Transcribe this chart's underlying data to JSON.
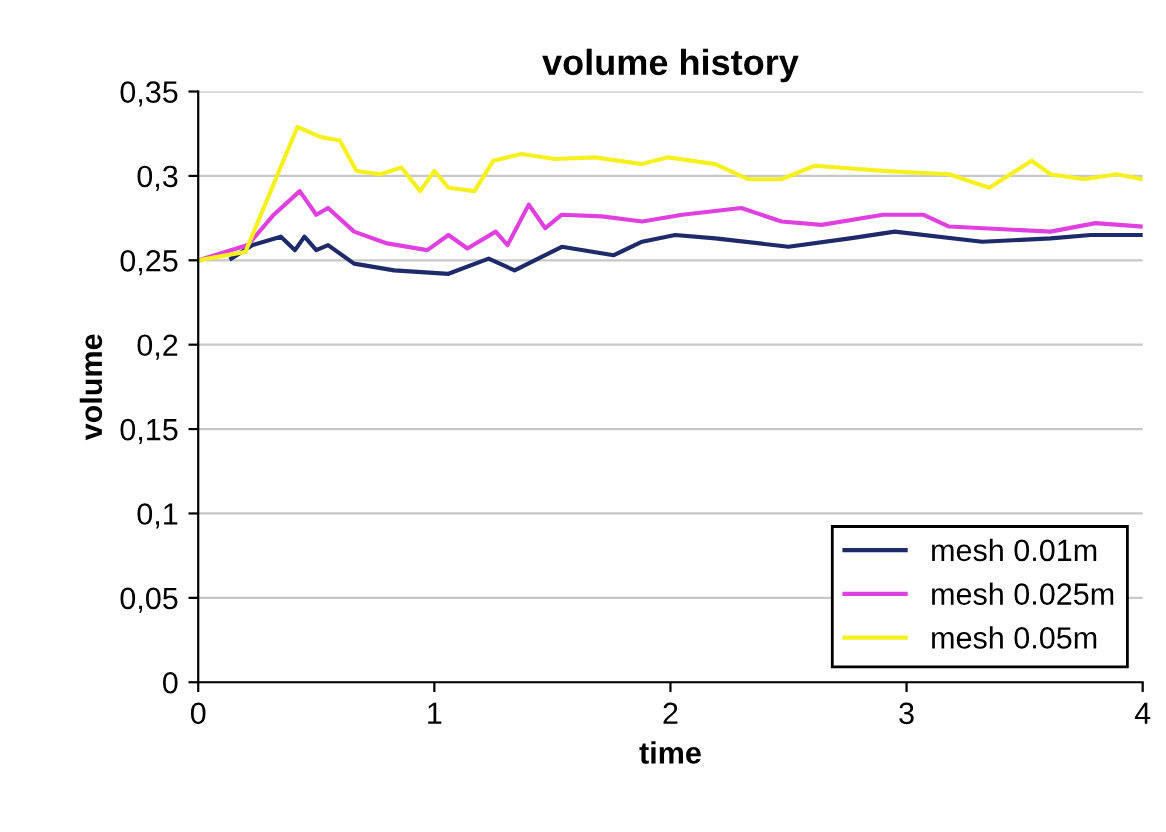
{
  "chart_data": {
    "type": "line",
    "title": "volume history",
    "xlabel": "time",
    "ylabel": "volume",
    "xlim": [
      0,
      4
    ],
    "xticks": [
      0,
      1,
      2,
      3,
      4
    ],
    "ylim": [
      0,
      0.35
    ],
    "yticks": [
      {
        "value": 0,
        "label": "0"
      },
      {
        "value": 0.05,
        "label": "0,05"
      },
      {
        "value": 0.1,
        "label": "0,1"
      },
      {
        "value": 0.15,
        "label": "0,15"
      },
      {
        "value": 0.2,
        "label": "0,2"
      },
      {
        "value": 0.25,
        "label": "0,25"
      },
      {
        "value": 0.3,
        "label": "0,3"
      },
      {
        "value": 0.35,
        "label": "0,35"
      }
    ],
    "grid": "y",
    "legend": "bottom right",
    "marker": "none",
    "line_style": "solid",
    "series": [
      {
        "name": "mesh 0.01m",
        "color": "#1f2a6b",
        "x": [
          0.14,
          0.23,
          0.35,
          0.41,
          0.45,
          0.5,
          0.55,
          0.66,
          0.83,
          1.06,
          1.23,
          1.34,
          1.54,
          1.76,
          1.88,
          2.02,
          2.19,
          2.5,
          2.76,
          2.95,
          3.32,
          3.61,
          3.78,
          4.0
        ],
        "values": [
          0.251,
          0.259,
          0.264,
          0.256,
          0.264,
          0.256,
          0.259,
          0.248,
          0.244,
          0.242,
          0.251,
          0.244,
          0.258,
          0.253,
          0.261,
          0.265,
          0.263,
          0.258,
          0.263,
          0.267,
          0.261,
          0.263,
          0.265,
          0.265
        ]
      },
      {
        "name": "mesh 0.025m",
        "color": "#e040e0",
        "x": [
          0,
          0.21,
          0.32,
          0.43,
          0.5,
          0.55,
          0.66,
          0.8,
          0.97,
          1.06,
          1.14,
          1.26,
          1.31,
          1.4,
          1.47,
          1.54,
          1.71,
          1.88,
          2.05,
          2.3,
          2.47,
          2.64,
          2.9,
          3.07,
          3.18,
          3.61,
          3.8,
          4.0
        ],
        "values": [
          0.25,
          0.259,
          0.277,
          0.291,
          0.277,
          0.281,
          0.267,
          0.26,
          0.256,
          0.265,
          0.257,
          0.267,
          0.259,
          0.283,
          0.269,
          0.277,
          0.276,
          0.273,
          0.277,
          0.281,
          0.273,
          0.271,
          0.277,
          0.277,
          0.27,
          0.267,
          0.272,
          0.27
        ]
      },
      {
        "name": "mesh 0.05m",
        "color": "#f5f020",
        "x": [
          0,
          0.2,
          0.42,
          0.52,
          0.6,
          0.67,
          0.77,
          0.86,
          0.94,
          1.0,
          1.06,
          1.17,
          1.25,
          1.37,
          1.51,
          1.68,
          1.88,
          1.99,
          2.19,
          2.33,
          2.47,
          2.61,
          2.9,
          3.18,
          3.35,
          3.53,
          3.61,
          3.75,
          3.89,
          4.0
        ],
        "values": [
          0.25,
          0.255,
          0.329,
          0.323,
          0.321,
          0.303,
          0.301,
          0.305,
          0.291,
          0.303,
          0.293,
          0.291,
          0.309,
          0.313,
          0.31,
          0.311,
          0.307,
          0.311,
          0.307,
          0.298,
          0.298,
          0.306,
          0.303,
          0.301,
          0.293,
          0.309,
          0.301,
          0.298,
          0.301,
          0.298
        ]
      }
    ]
  }
}
